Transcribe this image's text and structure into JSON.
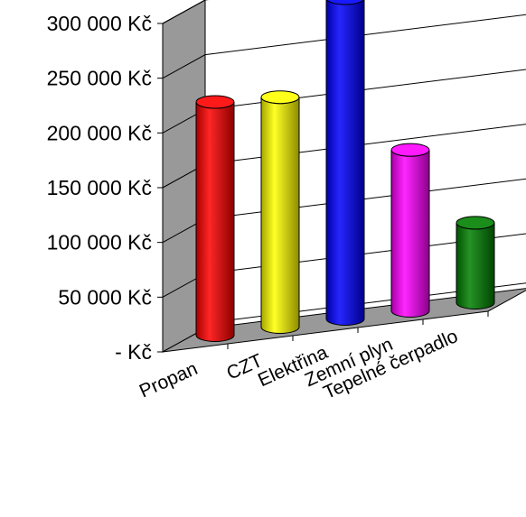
{
  "chart_data": {
    "type": "bar",
    "style": "3d-cylinder",
    "categories": [
      "Propan",
      "CZT",
      "Elektřina",
      "Zemní plyn",
      "Tepelné čerpadlo"
    ],
    "values": [
      213000,
      210000,
      293000,
      147000,
      73000
    ],
    "colors": [
      "#ff0000",
      "#ffff00",
      "#0000ff",
      "#ff00ff",
      "#008000"
    ],
    "y_ticks": [
      0,
      50000,
      100000,
      150000,
      200000,
      250000,
      300000
    ],
    "y_tick_labels": [
      "-   Kč",
      "50 000 Kč",
      "100 000 Kč",
      "150 000 Kč",
      "200 000 Kč",
      "250 000 Kč",
      "300 000 Kč"
    ],
    "ylim": [
      0,
      300000
    ],
    "grid": true,
    "title": "",
    "xlabel": "",
    "ylabel": "",
    "wall_color": "#999999",
    "floor_color": "#999999"
  }
}
